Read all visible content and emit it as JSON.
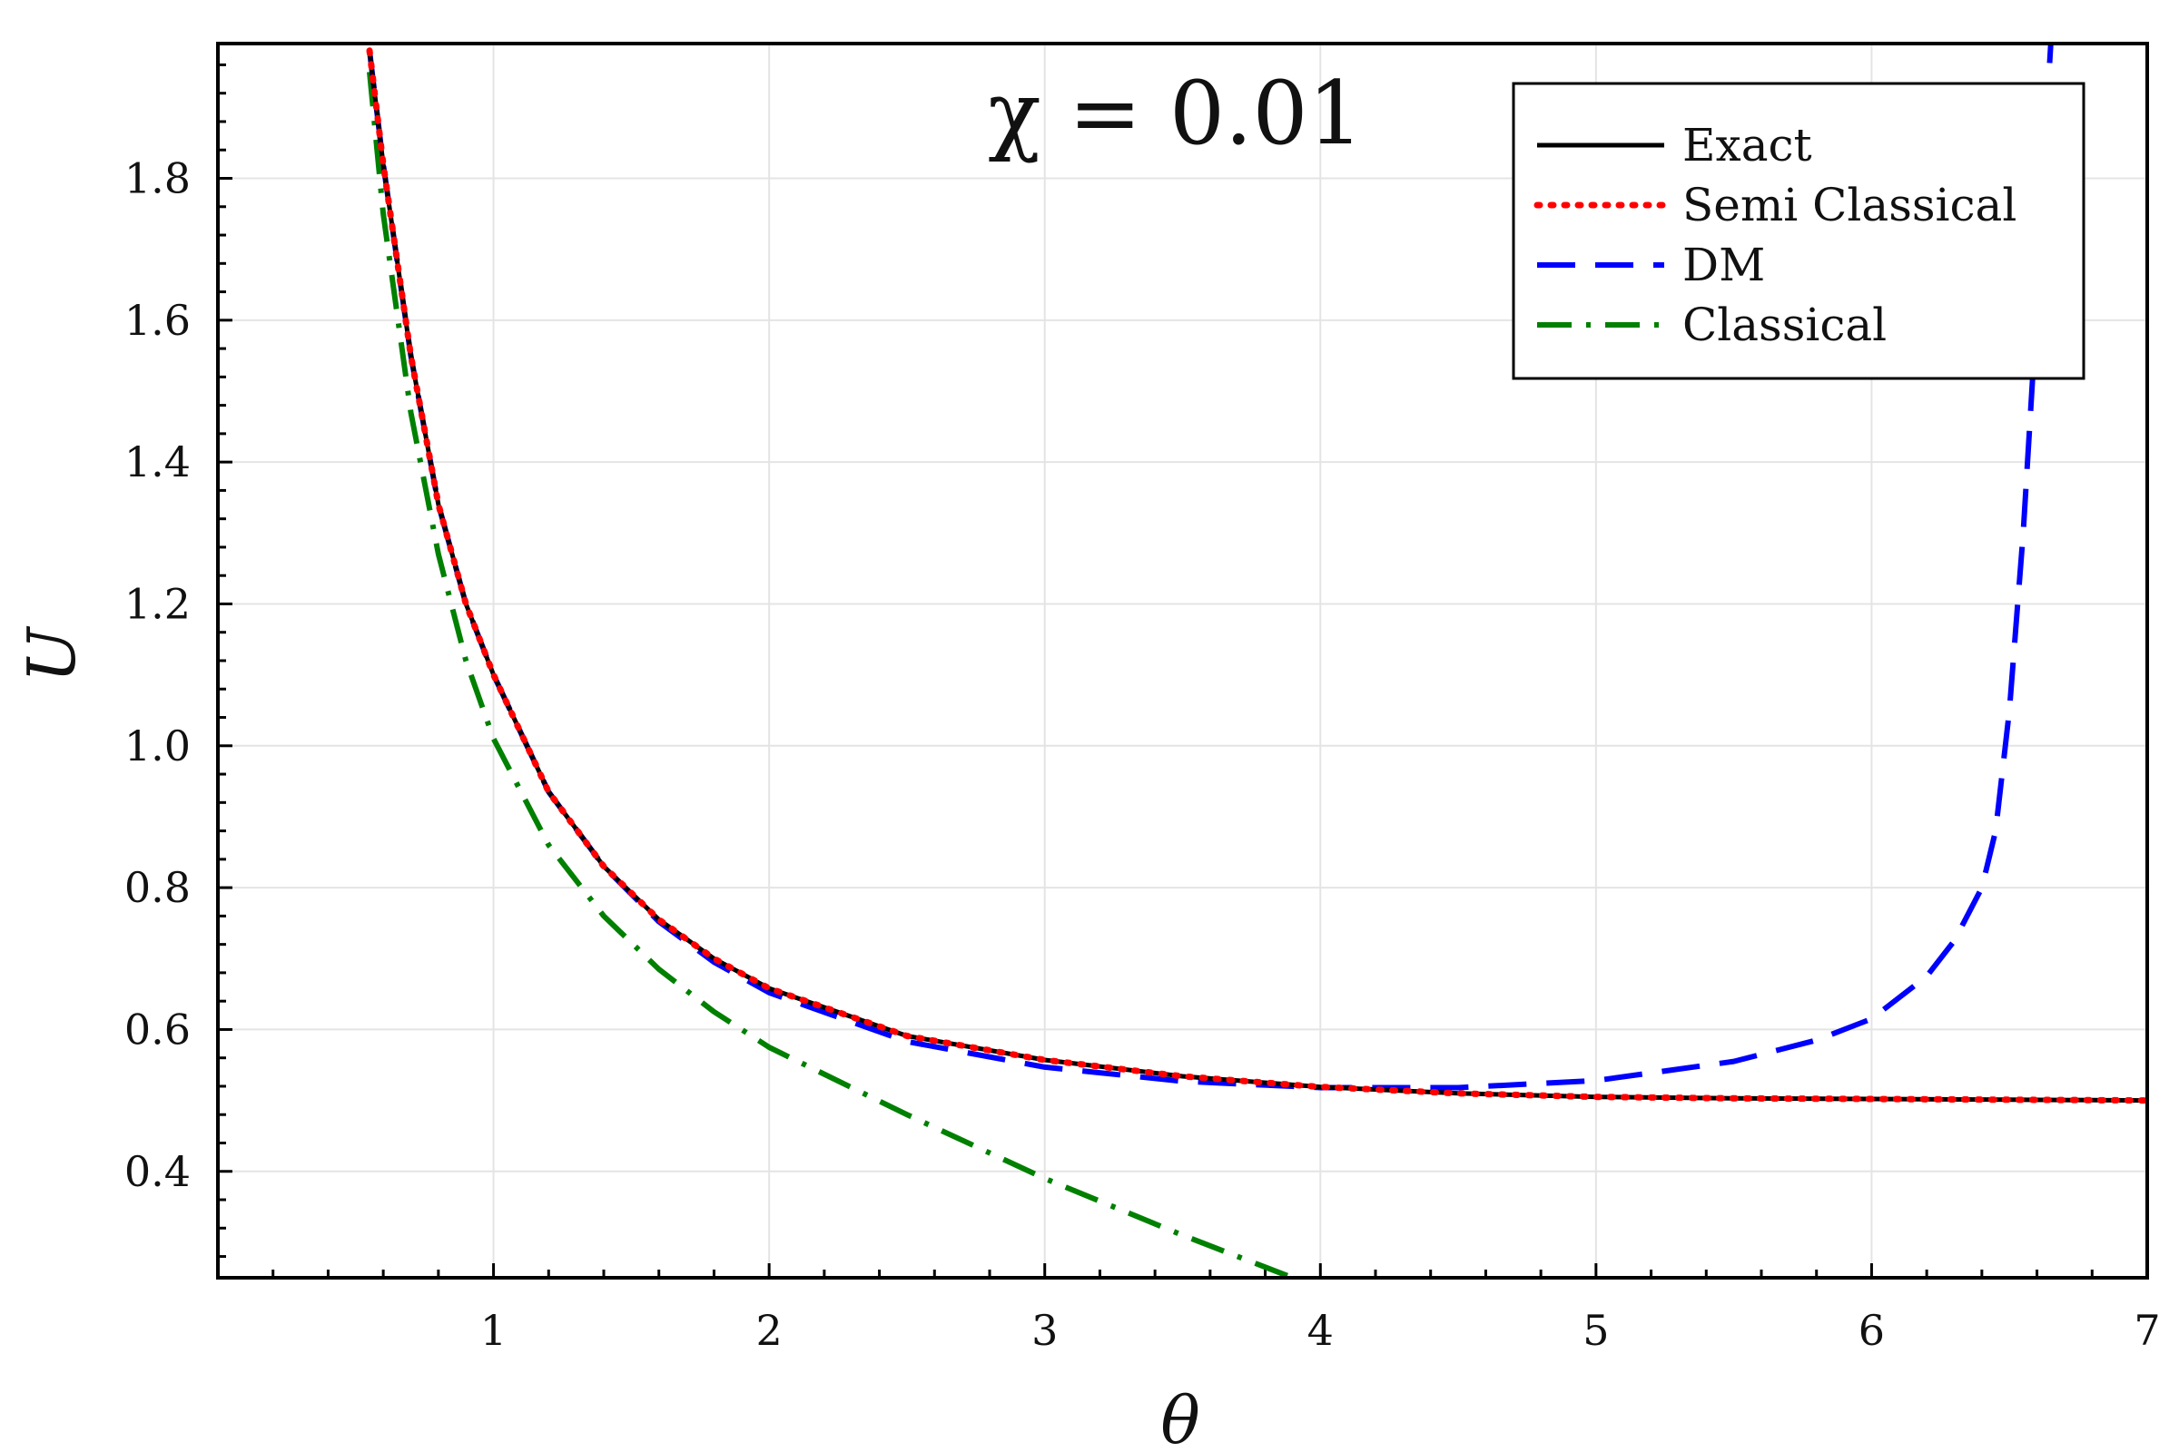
{
  "chart_data": {
    "type": "line",
    "annotation": "χ = 0.01",
    "xlabel": "θ",
    "ylabel": "U",
    "xlim": [
      0,
      7
    ],
    "ylim": [
      0.25,
      1.99
    ],
    "xticks": [
      1,
      2,
      3,
      4,
      5,
      6,
      7
    ],
    "yticks": [
      0.4,
      0.6,
      0.8,
      1.0,
      1.2,
      1.4,
      1.6,
      1.8
    ],
    "ytick_labels": [
      "0.4",
      "0.6",
      "0.8",
      "1.0",
      "1.2",
      "1.4",
      "1.6",
      "1.8"
    ],
    "grid": true,
    "legend_position": "top-right",
    "series": [
      {
        "name": "Exact",
        "style": "solid",
        "color": "#000000",
        "x": [
          0.55,
          0.6,
          0.7,
          0.8,
          0.9,
          1.0,
          1.2,
          1.4,
          1.6,
          1.8,
          2.0,
          2.5,
          3.0,
          3.5,
          4.0,
          4.5,
          5.0,
          5.5,
          6.0,
          6.5,
          7.0
        ],
        "y": [
          1.98,
          1.82,
          1.55,
          1.34,
          1.2,
          1.1,
          0.935,
          0.83,
          0.755,
          0.7,
          0.658,
          0.591,
          0.557,
          0.534,
          0.519,
          0.51,
          0.505,
          0.503,
          0.502,
          0.501,
          0.5
        ]
      },
      {
        "name": "Semi Classical",
        "style": "dotted",
        "color": "#ff0000",
        "x": [
          0.55,
          0.6,
          0.7,
          0.8,
          0.9,
          1.0,
          1.2,
          1.4,
          1.6,
          1.8,
          2.0,
          2.5,
          3.0,
          3.5,
          4.0,
          4.5,
          5.0,
          5.5,
          6.0,
          6.5,
          7.0
        ],
        "y": [
          1.98,
          1.82,
          1.55,
          1.34,
          1.2,
          1.1,
          0.935,
          0.83,
          0.755,
          0.7,
          0.658,
          0.591,
          0.557,
          0.534,
          0.519,
          0.51,
          0.505,
          0.503,
          0.502,
          0.501,
          0.5
        ]
      },
      {
        "name": "DM",
        "style": "dashed",
        "color": "#0000ff",
        "x": [
          0.55,
          0.6,
          0.7,
          0.8,
          0.9,
          1.0,
          1.2,
          1.4,
          1.6,
          1.8,
          2.0,
          2.5,
          3.0,
          3.5,
          4.0,
          4.5,
          5.0,
          5.5,
          5.8,
          6.0,
          6.2,
          6.3,
          6.4,
          6.45,
          6.5,
          6.55,
          6.6,
          6.63,
          6.65
        ],
        "y": [
          1.98,
          1.82,
          1.55,
          1.34,
          1.2,
          1.1,
          0.935,
          0.83,
          0.752,
          0.695,
          0.652,
          0.583,
          0.547,
          0.527,
          0.518,
          0.518,
          0.528,
          0.555,
          0.585,
          0.615,
          0.675,
          0.725,
          0.8,
          0.88,
          1.05,
          1.3,
          1.62,
          1.86,
          1.99
        ]
      },
      {
        "name": "Classical",
        "style": "dashdot",
        "color": "#008000",
        "x": [
          0.55,
          0.6,
          0.7,
          0.8,
          0.9,
          1.0,
          1.2,
          1.4,
          1.6,
          1.8,
          2.0,
          2.5,
          3.0,
          3.5,
          3.9
        ],
        "y": [
          1.95,
          1.75,
          1.47,
          1.27,
          1.12,
          1.01,
          0.86,
          0.76,
          0.685,
          0.625,
          0.575,
          0.48,
          0.39,
          0.31,
          0.25
        ]
      }
    ]
  }
}
